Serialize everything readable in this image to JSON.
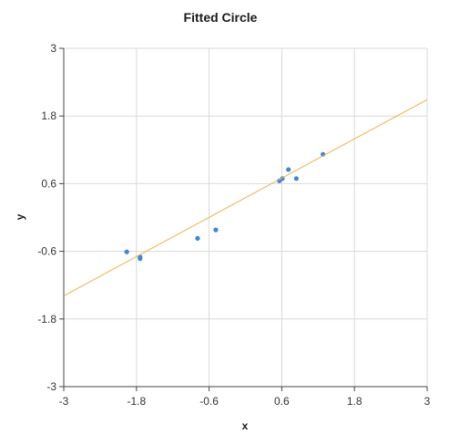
{
  "chart_data": {
    "type": "scatter",
    "title": "Fitted Circle",
    "xlabel": "x",
    "ylabel": "y",
    "xlim": [
      -3,
      3
    ],
    "ylim": [
      -3,
      3
    ],
    "xticks": [
      -3,
      -1.8,
      -0.6,
      0.6,
      1.8,
      3
    ],
    "yticks": [
      -3,
      -1.8,
      -0.6,
      0.6,
      1.8,
      3
    ],
    "xtick_labels": [
      "-3",
      "-1.8",
      "-0.6",
      "0.6",
      "1.8",
      "3"
    ],
    "ytick_labels": [
      "-3",
      "-1.8",
      "-0.6",
      "0.6",
      "1.8",
      "3"
    ],
    "grid": true,
    "series": [
      {
        "kind": "points",
        "color": "#3a86e0",
        "x": [
          -1.96,
          -1.74,
          -1.74,
          -0.79,
          -0.49,
          0.56,
          0.61,
          0.71,
          0.84,
          1.28
        ],
        "y": [
          -0.61,
          -0.7,
          -0.73,
          -0.37,
          -0.22,
          0.65,
          0.69,
          0.85,
          0.69,
          1.12
        ]
      },
      {
        "kind": "line",
        "color": "#f5b041",
        "x": [
          -3,
          3
        ],
        "y": [
          -1.39,
          2.09
        ]
      }
    ]
  }
}
